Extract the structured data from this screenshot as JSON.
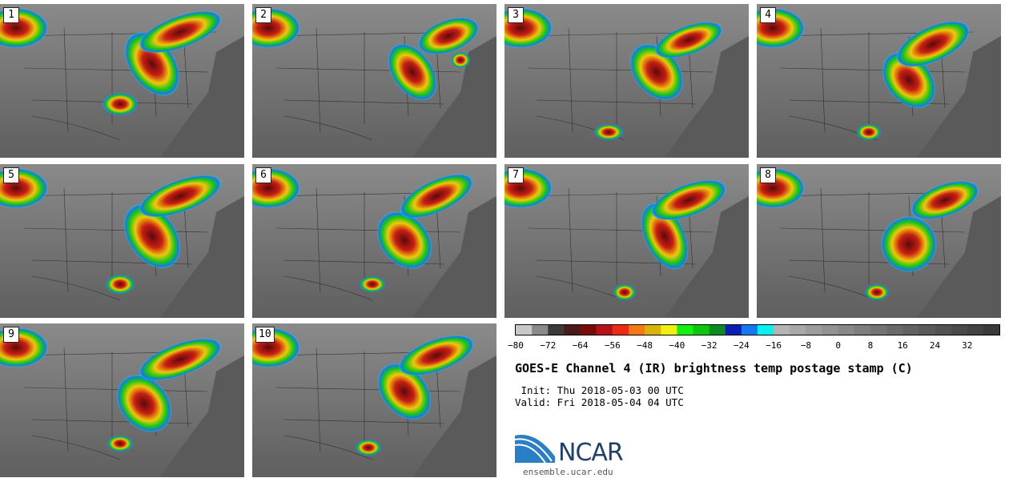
{
  "panels": [
    {
      "label": "1"
    },
    {
      "label": "2"
    },
    {
      "label": "3"
    },
    {
      "label": "4"
    },
    {
      "label": "5"
    },
    {
      "label": "6"
    },
    {
      "label": "7"
    },
    {
      "label": "8"
    },
    {
      "label": "9"
    },
    {
      "label": "10"
    }
  ],
  "colorbar": {
    "colors": [
      "#c8c8c8",
      "#8a8a8a",
      "#3a3a3a",
      "#4a1a1a",
      "#780a0a",
      "#b41414",
      "#f02814",
      "#f57814",
      "#d7b40a",
      "#f0f00a",
      "#14f014",
      "#0ac80a",
      "#0a8c1e",
      "#0a1eb4",
      "#1478f0",
      "#0af0f0",
      "#b4b4b4",
      "#a8a8a8",
      "#9c9c9c",
      "#929292",
      "#888888",
      "#7e7e7e",
      "#747474",
      "#6a6a6a",
      "#626262",
      "#5a5a5a",
      "#525252",
      "#4a4a4a",
      "#424242",
      "#3a3a3a"
    ],
    "ticks": [
      "−80",
      "−72",
      "−64",
      "−56",
      "−48",
      "−40",
      "−32",
      "−24",
      "−16",
      "−8",
      "0",
      "8",
      "16",
      "24",
      "32"
    ]
  },
  "title": "GOES-E Channel 4 (IR) brightness temp postage stamp (C)",
  "init_line": " Init: Thu 2018-05-03 00 UTC",
  "valid_line": "Valid: Fri 2018-05-04 04 UTC",
  "logo_text": "NCAR",
  "site": "ensemble.ucar.edu"
}
